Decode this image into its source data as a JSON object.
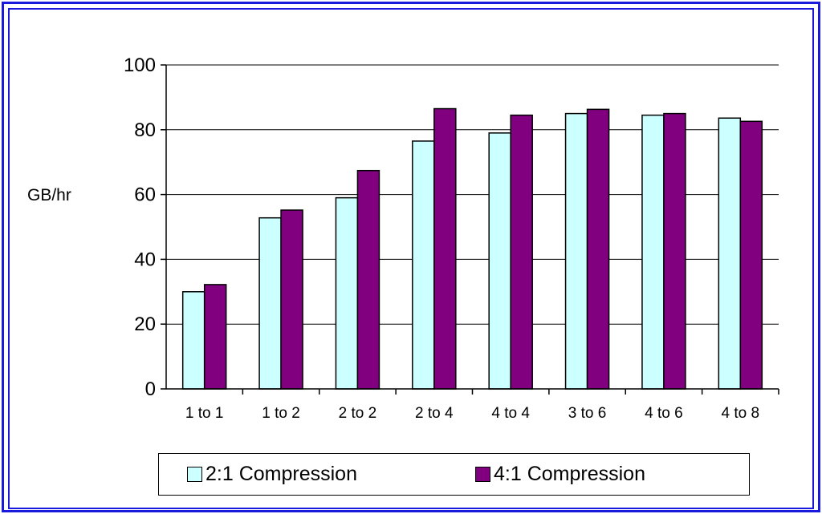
{
  "chart_data": {
    "type": "bar",
    "title": "",
    "xlabel": "",
    "ylabel": "GB/hr",
    "ylim": [
      0,
      100
    ],
    "yticks": [
      0,
      20,
      40,
      60,
      80,
      100
    ],
    "grid": true,
    "legend_position": "bottom",
    "categories": [
      "1 to 1",
      "1 to 2",
      "2 to 2",
      "2 to 4",
      "4 to 4",
      "3 to 6",
      "4 to 6",
      "4 to 8"
    ],
    "series": [
      {
        "name": "2:1 Compression",
        "color": "#ccffff",
        "values": [
          30,
          52.8,
          59,
          76.5,
          79,
          85,
          84.5,
          83.6
        ]
      },
      {
        "name": "4:1 Compression",
        "color": "#800080",
        "values": [
          32.2,
          55.2,
          67.4,
          86.5,
          84.5,
          86.3,
          85,
          82.6
        ]
      }
    ]
  }
}
